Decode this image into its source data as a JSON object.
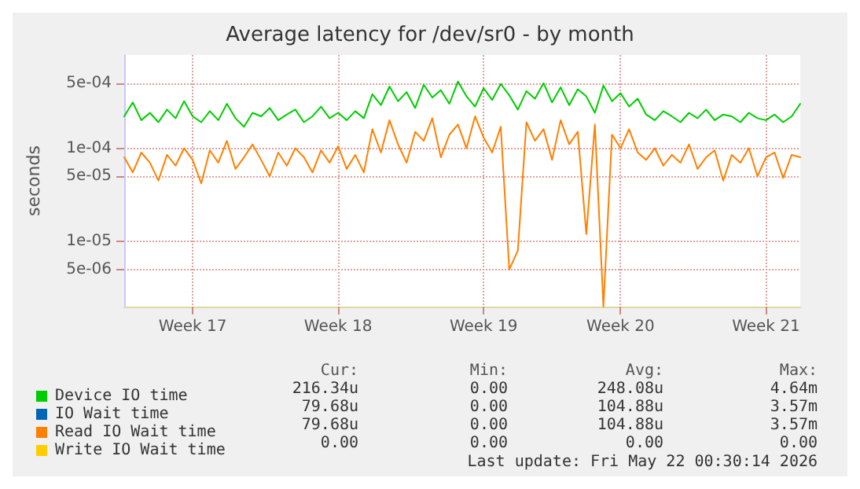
{
  "chart_data": {
    "type": "line",
    "title": "Average latency for /dev/sr0 - by month",
    "ylabel": "seconds",
    "categories": [
      null,
      null,
      null,
      null,
      null,
      null,
      null,
      null,
      "Week 17",
      null,
      null,
      null,
      null,
      null,
      null,
      null,
      null,
      null,
      null,
      null,
      null,
      null,
      null,
      null,
      null,
      "Week 18",
      null,
      null,
      null,
      null,
      null,
      null,
      null,
      null,
      null,
      null,
      null,
      null,
      null,
      null,
      null,
      null,
      "Week 19",
      null,
      null,
      null,
      null,
      null,
      null,
      null,
      null,
      null,
      null,
      null,
      null,
      null,
      null,
      null,
      "Week 20",
      null,
      null,
      null,
      null,
      null,
      null,
      null,
      null,
      null,
      null,
      null,
      null,
      null,
      null,
      null,
      null,
      "Week 21",
      null,
      null,
      null,
      null
    ],
    "series": [
      {
        "name": "Device IO time",
        "color": "#00cc00",
        "values": [
          0.00022,
          0.00031,
          0.0002,
          0.00024,
          0.00019,
          0.00026,
          0.00021,
          0.00032,
          0.00022,
          0.00019,
          0.00025,
          0.0002,
          0.0003,
          0.00021,
          0.00017,
          0.00024,
          0.00022,
          0.00027,
          0.0002,
          0.00023,
          0.00026,
          0.00019,
          0.00022,
          0.00028,
          0.00021,
          0.00024,
          0.0002,
          0.00025,
          0.00021,
          0.00038,
          0.00029,
          0.00046,
          0.00032,
          0.0004,
          0.00027,
          0.00048,
          0.00035,
          0.00042,
          0.0003,
          0.00052,
          0.00036,
          0.00028,
          0.00044,
          0.00033,
          0.00049,
          0.00037,
          0.00026,
          0.00041,
          0.00034,
          0.0005,
          0.00031,
          0.00045,
          0.00029,
          0.00043,
          0.00036,
          0.00024,
          0.00047,
          0.00032,
          0.00039,
          0.00028,
          0.00034,
          0.00023,
          0.0002,
          0.00025,
          0.00022,
          0.00019,
          0.00024,
          0.00021,
          0.00026,
          0.0002,
          0.00023,
          0.00022,
          0.00019,
          0.00024,
          0.00021,
          0.0002,
          0.00023,
          0.00019,
          0.00022,
          0.0003
        ]
      },
      {
        "name": "IO Wait time",
        "color": "#0066b3",
        "values": [
          null,
          null,
          null,
          null,
          null,
          null,
          null,
          null,
          null,
          null,
          null,
          null,
          null,
          null,
          null,
          null,
          null,
          null,
          null,
          null,
          null,
          null,
          null,
          null,
          null,
          null,
          null,
          null,
          null,
          null,
          null,
          null,
          null,
          null,
          null,
          null,
          null,
          null,
          null,
          null,
          null,
          null,
          null,
          null,
          null,
          null,
          null,
          null,
          null,
          null,
          null,
          null,
          null,
          null,
          null,
          null,
          null,
          null,
          null,
          null,
          null,
          null,
          null,
          null,
          null,
          null,
          null,
          null,
          null,
          null,
          null,
          null,
          null,
          null,
          null,
          null,
          null,
          null,
          null,
          null
        ]
      },
      {
        "name": "Read IO Wait time",
        "color": "#ff8000",
        "values": [
          8e-05,
          5.5e-05,
          9e-05,
          7e-05,
          4.5e-05,
          8.5e-05,
          6.5e-05,
          0.0001,
          7.5e-05,
          4.2e-05,
          9.5e-05,
          7e-05,
          0.00012,
          6e-05,
          8e-05,
          0.00011,
          7.5e-05,
          5e-05,
          9e-05,
          6.5e-05,
          0.0001,
          8e-05,
          5.5e-05,
          9.5e-05,
          7e-05,
          0.000105,
          6e-05,
          8.5e-05,
          5.5e-05,
          0.00016,
          9e-05,
          0.0002,
          0.00011,
          7e-05,
          0.00015,
          0.00012,
          0.00021,
          8e-05,
          0.00014,
          0.00018,
          0.0001,
          0.00022,
          0.00013,
          9e-05,
          0.00017,
          5e-06,
          8e-06,
          0.00019,
          0.00012,
          0.00016,
          7.5e-05,
          0.0002,
          0.00011,
          0.00015,
          1.2e-05,
          0.00018,
          2e-06,
          0.00014,
          0.0001,
          0.00016,
          9e-05,
          7.5e-05,
          0.0001,
          6.5e-05,
          8.5e-05,
          7e-05,
          0.00011,
          6e-05,
          8e-05,
          9.5e-05,
          4.5e-05,
          8.5e-05,
          7e-05,
          0.0001,
          5e-05,
          8e-05,
          9e-05,
          4.8e-05,
          8.5e-05,
          8e-05
        ]
      },
      {
        "name": "Write IO Wait time",
        "color": "#ffcc00",
        "values": [
          null,
          null,
          null,
          null,
          null,
          null,
          null,
          null,
          null,
          null,
          null,
          null,
          null,
          null,
          null,
          null,
          null,
          null,
          null,
          null,
          null,
          null,
          null,
          null,
          null,
          null,
          null,
          null,
          null,
          null,
          null,
          null,
          null,
          null,
          null,
          null,
          null,
          null,
          null,
          null,
          null,
          null,
          null,
          null,
          null,
          null,
          null,
          null,
          null,
          null,
          null,
          null,
          null,
          null,
          null,
          null,
          null,
          null,
          null,
          null,
          null,
          null,
          null,
          null,
          null,
          null,
          null,
          null,
          null,
          null,
          null,
          null,
          null,
          null,
          null,
          null,
          null,
          null,
          null,
          null
        ]
      }
    ],
    "log": "y",
    "ylim": [
      2e-06,
      0.001
    ],
    "yticks": [
      {
        "value": 5e-06,
        "label": "5e-06"
      },
      {
        "value": 1e-05,
        "label": "1e-05"
      },
      {
        "value": 5e-05,
        "label": "5e-05"
      },
      {
        "value": 0.0001,
        "label": "1e-04"
      },
      {
        "value": 0.0005,
        "label": "5e-04"
      }
    ],
    "grid": true,
    "legend": "bottom left",
    "marker": "none",
    "line_style": "solid",
    "annotations": [
      "Cur:",
      "Min:",
      "Avg:",
      "Max:",
      "216.34u",
      "0.00",
      "248.08u",
      "4.64m",
      "79.68u",
      "0.00",
      "104.88u",
      "3.57m",
      "79.68u",
      "0.00",
      "104.88u",
      "3.57m",
      "0.00",
      "0.00",
      "0.00",
      "0.00",
      "Last update: Fri May 22 00:30:14 2026"
    ]
  }
}
